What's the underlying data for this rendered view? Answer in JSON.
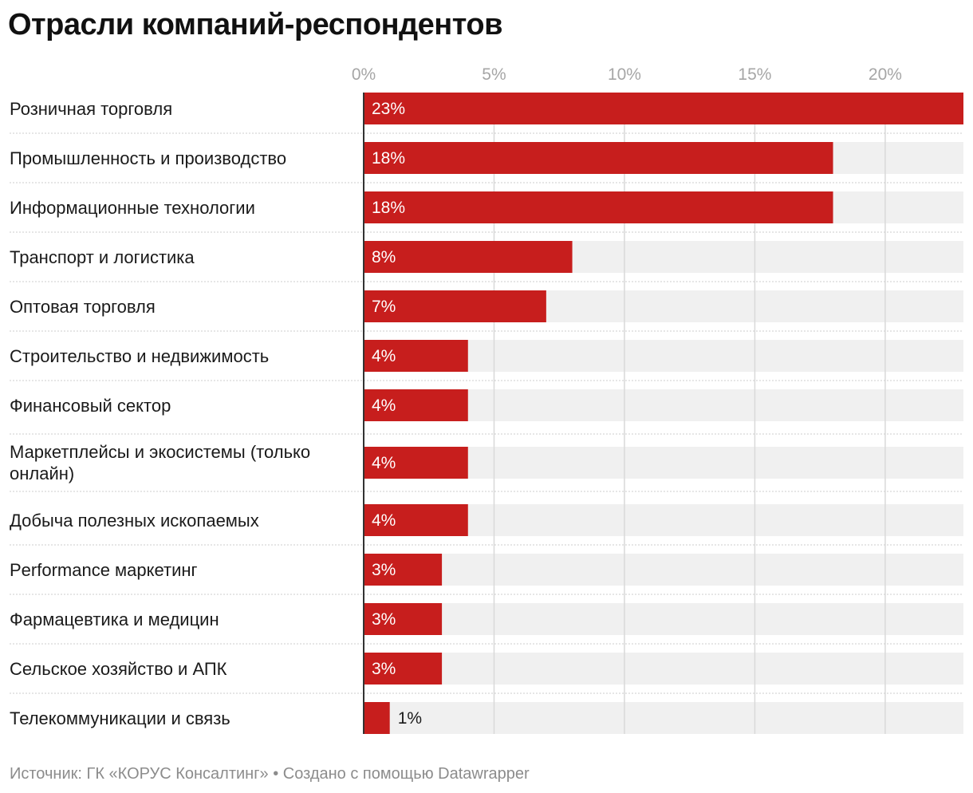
{
  "chart_data": {
    "type": "bar",
    "orientation": "horizontal",
    "title": "Отрасли компаний-респондентов",
    "categories": [
      "Розничная торговля",
      "Промышленность и производство",
      "Информационные технологии",
      "Транспорт и логистика",
      "Оптовая торговля",
      "Строительство и недвижимость",
      "Финансовый сектор",
      "Маркетплейсы и экосистемы (только онлайн)",
      "Добыча полезных ископаемых",
      "Performance маркетинг",
      "Фармацевтика и медицин",
      "Сельское хозяйство и АПК",
      "Телекоммуникации и связь"
    ],
    "values": [
      23,
      18,
      18,
      8,
      7,
      4,
      4,
      4,
      4,
      3,
      3,
      3,
      1
    ],
    "value_labels": [
      "23%",
      "18%",
      "18%",
      "8%",
      "7%",
      "4%",
      "4%",
      "4%",
      "4%",
      "3%",
      "3%",
      "3%",
      "1%"
    ],
    "xlim": [
      0,
      23
    ],
    "x_ticks": [
      0,
      5,
      10,
      15,
      20
    ],
    "x_tick_labels": [
      "0%",
      "5%",
      "10%",
      "15%",
      "20%"
    ],
    "xlabel": "",
    "ylabel": "",
    "grid": true,
    "colors": {
      "bar": "#c71e1d",
      "track": "#f0f0f0",
      "grid": "#d9d9d9",
      "separator": "#cccccc",
      "label_inside": "#ffffff",
      "label_outside": "#1a1a1a"
    }
  },
  "footer": {
    "text": "Источник: ГК «КОРУС Консалтинг» • Создано с помощью Datawrapper"
  }
}
